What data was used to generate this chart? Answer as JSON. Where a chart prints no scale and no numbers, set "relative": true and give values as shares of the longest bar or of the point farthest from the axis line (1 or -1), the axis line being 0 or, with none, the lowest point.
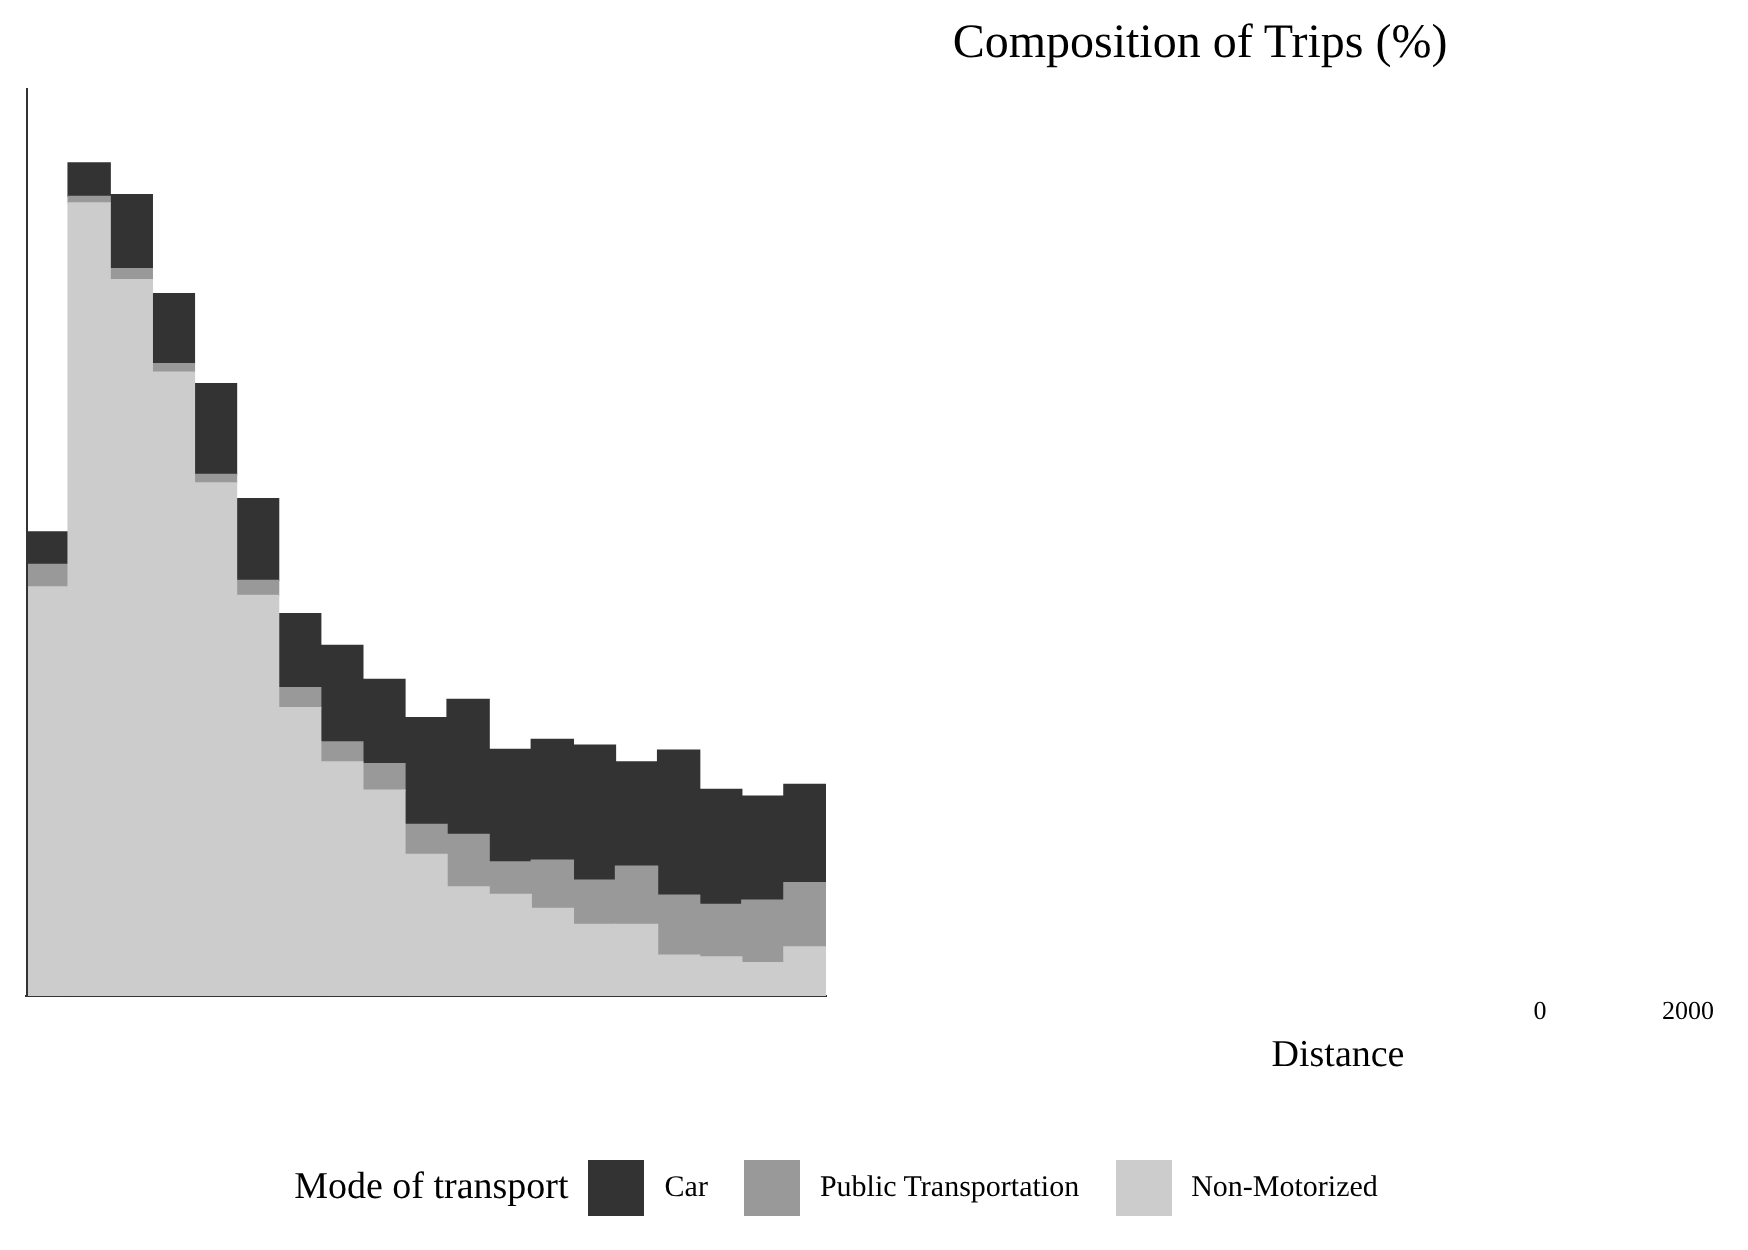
{
  "chart_data": {
    "type": "bar",
    "title": "Composition of Trips (%)",
    "legend_title": "Mode of transport",
    "legend": "bottom",
    "stacked": true,
    "relative": true,
    "grid": false,
    "annotations": [
      "0",
      "2000",
      "Distance"
    ],
    "categories": [
      null,
      null,
      null,
      null,
      null,
      null,
      null,
      null,
      null,
      null,
      null,
      null,
      null,
      null,
      null,
      null,
      null,
      null,
      null
    ],
    "series": [
      {
        "name": "Non-Motorized",
        "color": "#cccccc",
        "values": [
          0.491,
          0.952,
          0.86,
          0.749,
          0.616,
          0.481,
          0.346,
          0.281,
          0.247,
          0.17,
          0.131,
          0.122,
          0.105,
          0.086,
          0.086,
          0.049,
          0.047,
          0.04,
          0.059
        ]
      },
      {
        "name": "Public Transportation",
        "color": "#999999",
        "values": [
          0.027,
          0.008,
          0.013,
          0.01,
          0.01,
          0.018,
          0.024,
          0.024,
          0.032,
          0.036,
          0.063,
          0.039,
          0.058,
          0.053,
          0.07,
          0.072,
          0.063,
          0.075,
          0.077
        ]
      },
      {
        "name": "Car",
        "color": "#333333",
        "values": [
          0.039,
          0.04,
          0.089,
          0.084,
          0.109,
          0.098,
          0.089,
          0.116,
          0.101,
          0.128,
          0.162,
          0.135,
          0.145,
          0.162,
          0.125,
          0.174,
          0.138,
          0.125,
          0.118
        ]
      }
    ]
  }
}
